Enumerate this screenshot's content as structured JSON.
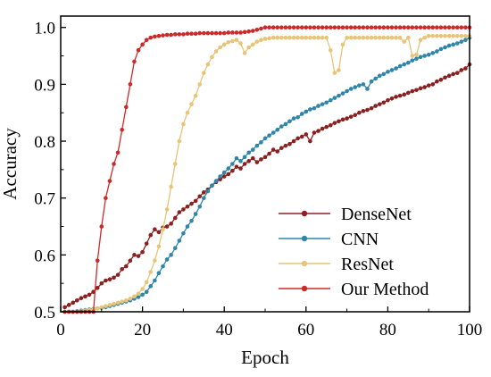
{
  "chart_data": {
    "type": "line",
    "title": "",
    "xlabel": "Epoch",
    "ylabel": "Accuracy",
    "xlim": [
      0,
      100
    ],
    "ylim": [
      0.5,
      1.02
    ],
    "xticks": [
      "0",
      "20",
      "40",
      "60",
      "80",
      "100"
    ],
    "xtick_values": [
      0,
      20,
      40,
      60,
      80,
      100
    ],
    "yticks": [
      "0.5",
      "0.6",
      "0.7",
      "0.8",
      "0.9",
      "1.0"
    ],
    "ytick_values": [
      0.5,
      0.6,
      0.7,
      0.8,
      0.9,
      1.0
    ],
    "grid": false,
    "legend_position": "bottom-right",
    "series": [
      {
        "name": "DenseNet",
        "color": "#8B2020",
        "x": [
          1,
          2,
          3,
          4,
          5,
          6,
          7,
          8,
          9,
          10,
          11,
          12,
          13,
          14,
          15,
          16,
          17,
          18,
          19,
          20,
          21,
          22,
          23,
          24,
          25,
          26,
          27,
          28,
          29,
          30,
          31,
          32,
          33,
          34,
          35,
          36,
          37,
          38,
          39,
          40,
          41,
          42,
          43,
          44,
          45,
          46,
          47,
          48,
          49,
          50,
          51,
          52,
          53,
          54,
          55,
          56,
          57,
          58,
          59,
          60,
          61,
          62,
          63,
          64,
          65,
          66,
          67,
          68,
          69,
          70,
          71,
          72,
          73,
          74,
          75,
          76,
          77,
          78,
          79,
          80,
          81,
          82,
          83,
          84,
          85,
          86,
          87,
          88,
          89,
          90,
          91,
          92,
          93,
          94,
          95,
          96,
          97,
          98,
          99,
          100
        ],
        "y": [
          0.508,
          0.512,
          0.516,
          0.52,
          0.524,
          0.527,
          0.53,
          0.535,
          0.542,
          0.55,
          0.555,
          0.557,
          0.56,
          0.565,
          0.575,
          0.58,
          0.59,
          0.6,
          0.598,
          0.605,
          0.62,
          0.635,
          0.645,
          0.64,
          0.648,
          0.65,
          0.655,
          0.665,
          0.675,
          0.68,
          0.685,
          0.69,
          0.695,
          0.703,
          0.71,
          0.715,
          0.722,
          0.728,
          0.733,
          0.738,
          0.742,
          0.748,
          0.755,
          0.752,
          0.76,
          0.765,
          0.77,
          0.763,
          0.768,
          0.772,
          0.778,
          0.785,
          0.782,
          0.788,
          0.792,
          0.795,
          0.8,
          0.805,
          0.808,
          0.812,
          0.8,
          0.815,
          0.818,
          0.822,
          0.825,
          0.828,
          0.832,
          0.835,
          0.838,
          0.84,
          0.843,
          0.846,
          0.85,
          0.853,
          0.855,
          0.858,
          0.862,
          0.865,
          0.868,
          0.872,
          0.875,
          0.878,
          0.88,
          0.882,
          0.885,
          0.888,
          0.89,
          0.893,
          0.895,
          0.898,
          0.9,
          0.905,
          0.908,
          0.912,
          0.915,
          0.918,
          0.92,
          0.925,
          0.928,
          0.935
        ]
      },
      {
        "name": "CNN",
        "color": "#2E86A8",
        "x": [
          1,
          2,
          3,
          4,
          5,
          6,
          7,
          8,
          9,
          10,
          11,
          12,
          13,
          14,
          15,
          16,
          17,
          18,
          19,
          20,
          21,
          22,
          23,
          24,
          25,
          26,
          27,
          28,
          29,
          30,
          31,
          32,
          33,
          34,
          35,
          36,
          37,
          38,
          39,
          40,
          41,
          42,
          43,
          44,
          45,
          46,
          47,
          48,
          49,
          50,
          51,
          52,
          53,
          54,
          55,
          56,
          57,
          58,
          59,
          60,
          61,
          62,
          63,
          64,
          65,
          66,
          67,
          68,
          69,
          70,
          71,
          72,
          73,
          74,
          75,
          76,
          77,
          78,
          79,
          80,
          81,
          82,
          83,
          84,
          85,
          86,
          87,
          88,
          89,
          90,
          91,
          92,
          93,
          94,
          95,
          96,
          97,
          98,
          99,
          100
        ],
        "y": [
          0.5,
          0.5,
          0.5,
          0.501,
          0.502,
          0.503,
          0.504,
          0.505,
          0.506,
          0.507,
          0.508,
          0.51,
          0.512,
          0.514,
          0.516,
          0.518,
          0.52,
          0.523,
          0.526,
          0.53,
          0.535,
          0.545,
          0.555,
          0.568,
          0.58,
          0.592,
          0.6,
          0.612,
          0.625,
          0.638,
          0.65,
          0.66,
          0.672,
          0.685,
          0.7,
          0.712,
          0.722,
          0.73,
          0.738,
          0.745,
          0.752,
          0.76,
          0.77,
          0.765,
          0.772,
          0.78,
          0.785,
          0.792,
          0.798,
          0.805,
          0.81,
          0.815,
          0.82,
          0.826,
          0.83,
          0.835,
          0.84,
          0.842,
          0.848,
          0.852,
          0.856,
          0.858,
          0.862,
          0.865,
          0.868,
          0.872,
          0.876,
          0.88,
          0.884,
          0.888,
          0.892,
          0.895,
          0.898,
          0.9,
          0.892,
          0.905,
          0.91,
          0.915,
          0.918,
          0.922,
          0.925,
          0.928,
          0.932,
          0.935,
          0.938,
          0.942,
          0.945,
          0.948,
          0.95,
          0.952,
          0.955,
          0.958,
          0.962,
          0.965,
          0.968,
          0.97,
          0.972,
          0.975,
          0.978,
          0.982
        ]
      },
      {
        "name": "ResNet",
        "color": "#E8C478",
        "x": [
          1,
          2,
          3,
          4,
          5,
          6,
          7,
          8,
          9,
          10,
          11,
          12,
          13,
          14,
          15,
          16,
          17,
          18,
          19,
          20,
          21,
          22,
          23,
          24,
          25,
          26,
          27,
          28,
          29,
          30,
          31,
          32,
          33,
          34,
          35,
          36,
          37,
          38,
          39,
          40,
          41,
          42,
          43,
          44,
          45,
          46,
          47,
          48,
          49,
          50,
          51,
          52,
          53,
          54,
          55,
          56,
          57,
          58,
          59,
          60,
          61,
          62,
          63,
          64,
          65,
          66,
          67,
          68,
          69,
          70,
          71,
          72,
          73,
          74,
          75,
          76,
          77,
          78,
          79,
          80,
          81,
          82,
          83,
          84,
          85,
          86,
          87,
          88,
          89,
          90,
          91,
          92,
          93,
          94,
          95,
          96,
          97,
          98,
          99,
          100
        ],
        "y": [
          0.5,
          0.5,
          0.5,
          0.5,
          0.501,
          0.502,
          0.503,
          0.504,
          0.506,
          0.508,
          0.51,
          0.512,
          0.514,
          0.516,
          0.518,
          0.52,
          0.523,
          0.527,
          0.532,
          0.54,
          0.552,
          0.57,
          0.59,
          0.615,
          0.645,
          0.68,
          0.72,
          0.76,
          0.8,
          0.83,
          0.85,
          0.865,
          0.88,
          0.9,
          0.92,
          0.935,
          0.948,
          0.958,
          0.965,
          0.97,
          0.974,
          0.976,
          0.978,
          0.972,
          0.955,
          0.965,
          0.97,
          0.975,
          0.978,
          0.98,
          0.981,
          0.982,
          0.982,
          0.982,
          0.982,
          0.982,
          0.982,
          0.982,
          0.982,
          0.982,
          0.982,
          0.982,
          0.982,
          0.982,
          0.982,
          0.96,
          0.92,
          0.925,
          0.97,
          0.982,
          0.982,
          0.982,
          0.982,
          0.982,
          0.982,
          0.982,
          0.982,
          0.982,
          0.982,
          0.982,
          0.982,
          0.982,
          0.982,
          0.975,
          0.982,
          0.95,
          0.952,
          0.978,
          0.982,
          0.985,
          0.985,
          0.985,
          0.985,
          0.985,
          0.985,
          0.985,
          0.985,
          0.985,
          0.985,
          0.985
        ]
      },
      {
        "name": "Our Method",
        "color": "#CC2A2A",
        "x": [
          1,
          2,
          3,
          4,
          5,
          6,
          7,
          8,
          9,
          10,
          11,
          12,
          13,
          14,
          15,
          16,
          17,
          18,
          19,
          20,
          21,
          22,
          23,
          24,
          25,
          26,
          27,
          28,
          29,
          30,
          31,
          32,
          33,
          34,
          35,
          36,
          37,
          38,
          39,
          40,
          41,
          42,
          43,
          44,
          45,
          46,
          47,
          48,
          49,
          50,
          51,
          52,
          53,
          54,
          55,
          56,
          57,
          58,
          59,
          60,
          61,
          62,
          63,
          64,
          65,
          66,
          67,
          68,
          69,
          70,
          71,
          72,
          73,
          74,
          75,
          76,
          77,
          78,
          79,
          80,
          81,
          82,
          83,
          84,
          85,
          86,
          87,
          88,
          89,
          90,
          91,
          92,
          93,
          94,
          95,
          96,
          97,
          98,
          99,
          100
        ],
        "y": [
          0.5,
          0.5,
          0.5,
          0.5,
          0.5,
          0.5,
          0.5,
          0.5,
          0.59,
          0.65,
          0.7,
          0.73,
          0.76,
          0.78,
          0.82,
          0.86,
          0.9,
          0.94,
          0.96,
          0.97,
          0.978,
          0.982,
          0.984,
          0.985,
          0.986,
          0.987,
          0.987,
          0.988,
          0.988,
          0.988,
          0.989,
          0.989,
          0.989,
          0.99,
          0.99,
          0.99,
          0.99,
          0.99,
          0.99,
          0.99,
          0.991,
          0.991,
          0.991,
          0.991,
          0.992,
          0.993,
          0.994,
          0.996,
          0.998,
          1.0,
          1.0,
          1.0,
          1.0,
          1.0,
          1.0,
          1.0,
          1.0,
          1.0,
          1.0,
          1.0,
          1.0,
          1.0,
          1.0,
          1.0,
          1.0,
          1.0,
          1.0,
          1.0,
          1.0,
          1.0,
          1.0,
          1.0,
          1.0,
          1.0,
          1.0,
          1.0,
          1.0,
          1.0,
          1.0,
          1.0,
          1.0,
          1.0,
          1.0,
          1.0,
          1.0,
          1.0,
          1.0,
          1.0,
          1.0,
          1.0,
          1.0,
          1.0,
          1.0,
          1.0,
          1.0,
          1.0,
          1.0,
          1.0,
          1.0,
          1.0
        ]
      }
    ]
  }
}
